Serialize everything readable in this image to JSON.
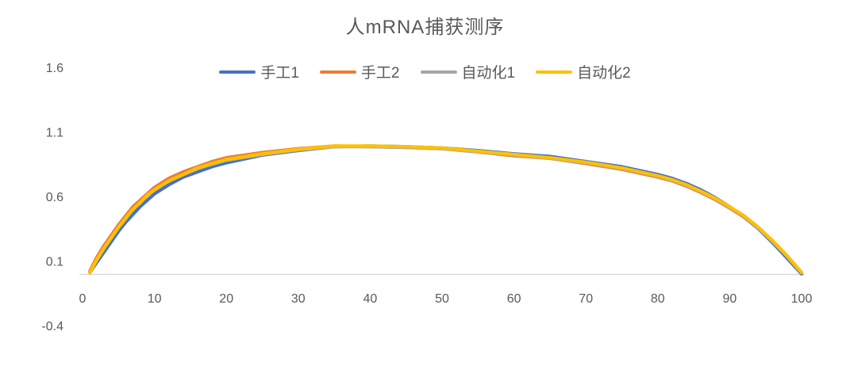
{
  "chart_data": {
    "type": "line",
    "title": "人mRNA捕获测序",
    "xlabel": "",
    "ylabel": "",
    "xlim": [
      0,
      100
    ],
    "ylim": [
      -0.4,
      1.6
    ],
    "x_ticks": [
      "0",
      "10",
      "20",
      "30",
      "40",
      "50",
      "60",
      "70",
      "80",
      "90",
      "100"
    ],
    "y_ticks": [
      "1.6",
      "1.1",
      "0.6",
      "0.1",
      "-0.4"
    ],
    "grid": false,
    "legend_position": "top-center",
    "background_color": "#FFFFFF",
    "axis_line_color": "#D9D9D9",
    "tick_label_color": "#595959",
    "title_color": "#595959",
    "x": [
      1,
      2,
      3,
      4,
      5,
      6,
      7,
      8,
      9,
      10,
      12,
      14,
      16,
      18,
      20,
      25,
      30,
      35,
      40,
      45,
      50,
      55,
      60,
      65,
      70,
      75,
      80,
      82,
      84,
      86,
      88,
      90,
      92,
      94,
      96,
      98,
      100
    ],
    "series": [
      {
        "name": "手工1",
        "color": "#4472C4",
        "values": [
          0.01,
          0.09,
          0.17,
          0.25,
          0.33,
          0.4,
          0.46,
          0.52,
          0.57,
          0.62,
          0.69,
          0.75,
          0.79,
          0.83,
          0.86,
          0.92,
          0.955,
          0.985,
          0.99,
          0.985,
          0.975,
          0.955,
          0.93,
          0.91,
          0.87,
          0.83,
          0.77,
          0.74,
          0.7,
          0.65,
          0.59,
          0.52,
          0.44,
          0.35,
          0.24,
          0.12,
          0.0
        ]
      },
      {
        "name": "手工2",
        "color": "#ED7D31",
        "values": [
          0.02,
          0.13,
          0.22,
          0.3,
          0.38,
          0.45,
          0.52,
          0.57,
          0.62,
          0.67,
          0.74,
          0.79,
          0.83,
          0.87,
          0.9,
          0.94,
          0.97,
          0.99,
          0.985,
          0.98,
          0.97,
          0.945,
          0.915,
          0.895,
          0.855,
          0.81,
          0.75,
          0.72,
          0.68,
          0.63,
          0.575,
          0.51,
          0.44,
          0.355,
          0.25,
          0.135,
          0.01
        ]
      },
      {
        "name": "自动化1",
        "color": "#A5A5A5",
        "values": [
          0.01,
          0.11,
          0.2,
          0.28,
          0.36,
          0.43,
          0.5,
          0.55,
          0.61,
          0.65,
          0.72,
          0.77,
          0.815,
          0.85,
          0.88,
          0.925,
          0.96,
          0.985,
          0.985,
          0.98,
          0.97,
          0.945,
          0.92,
          0.895,
          0.86,
          0.815,
          0.755,
          0.725,
          0.685,
          0.635,
          0.58,
          0.515,
          0.445,
          0.355,
          0.25,
          0.135,
          0.01
        ]
      },
      {
        "name": "自动化2",
        "color": "#FFC000",
        "values": [
          0.01,
          0.11,
          0.2,
          0.28,
          0.36,
          0.43,
          0.5,
          0.55,
          0.61,
          0.65,
          0.72,
          0.77,
          0.82,
          0.855,
          0.885,
          0.93,
          0.965,
          0.99,
          0.99,
          0.985,
          0.975,
          0.95,
          0.925,
          0.9,
          0.865,
          0.82,
          0.76,
          0.73,
          0.69,
          0.64,
          0.585,
          0.52,
          0.45,
          0.36,
          0.255,
          0.14,
          0.01
        ]
      }
    ]
  }
}
